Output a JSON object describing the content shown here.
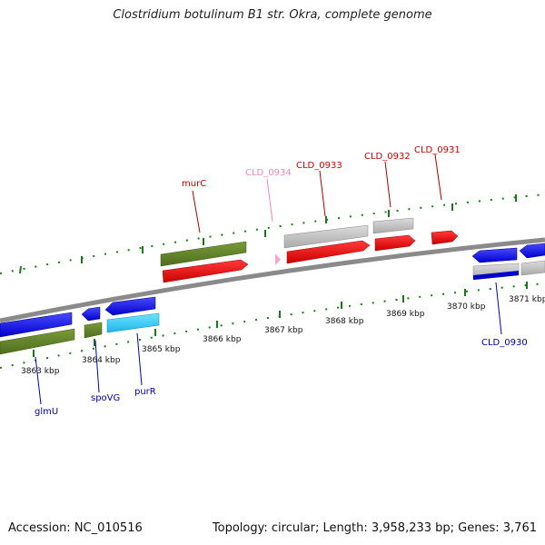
{
  "title": "Clostridium botulinum B1 str. Okra, complete genome",
  "footer": {
    "accession": "Accession: NC_010516",
    "summary": "Topology: circular; Length: 3,958,233 bp; Genes: 3,761"
  },
  "colors": {
    "backbone": "#8a8a8a",
    "tick": "#1a7a1a",
    "forward_label": "#cc0000",
    "reverse_label": "#0000aa",
    "pseudo_label": "#ee88bb"
  },
  "ticks": [
    "3863 kbp",
    "3864 kbp",
    "3865 kbp",
    "3866 kbp",
    "3867 kbp",
    "3868 kbp",
    "3869 kbp",
    "3870 kbp",
    "3871 kbp"
  ],
  "genes_top": [
    "murC",
    "CLD_0934",
    "CLD_0933",
    "CLD_0932",
    "CLD_0931"
  ],
  "genes_bottom": [
    "glmU",
    "spoVG",
    "purR",
    "CLD_0930"
  ]
}
